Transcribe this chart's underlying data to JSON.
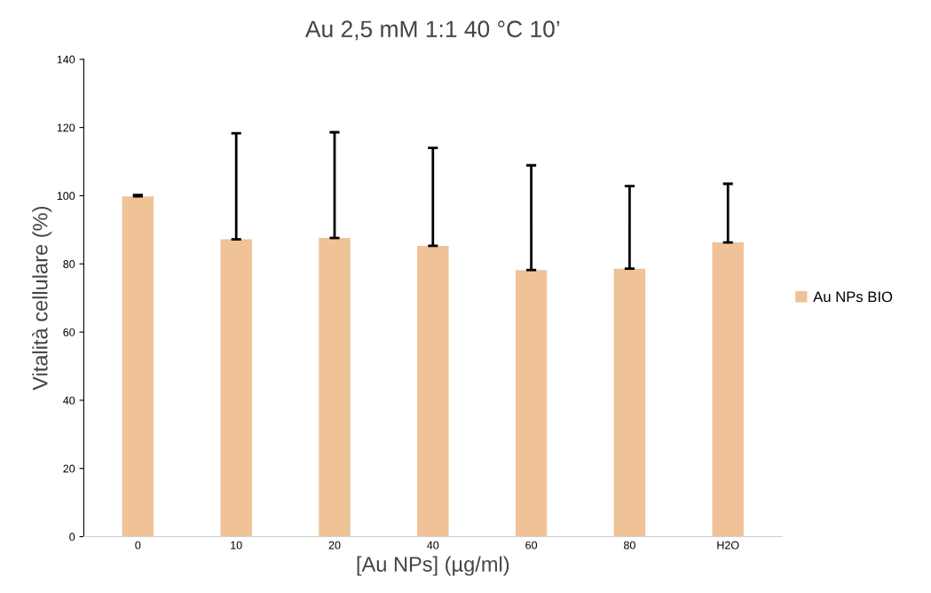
{
  "chart_data": {
    "type": "bar",
    "title": "Au 2,5 mM 1:1 40 °C 10’",
    "xlabel": "[Au NPs] (µg/ml)",
    "ylabel": "Vitalità cellulare (%)",
    "categories": [
      "0",
      "10",
      "20",
      "40",
      "60",
      "80",
      "H2O"
    ],
    "series": [
      {
        "name": "Au NPs BIO",
        "color": "#f0c297",
        "values": [
          99.8,
          87.2,
          87.6,
          85.3,
          78.2,
          78.6,
          86.3
        ],
        "errors": [
          [
            99.8,
            100.2
          ],
          [
            87.2,
            118.3
          ],
          [
            87.6,
            118.6
          ],
          [
            85.3,
            114.0
          ],
          [
            78.2,
            108.9
          ],
          [
            78.6,
            102.8
          ],
          [
            86.3,
            103.5
          ]
        ]
      }
    ],
    "ylim": [
      0,
      140
    ],
    "yticks": [
      0,
      20,
      40,
      60,
      80,
      100,
      120,
      140
    ],
    "grid": false,
    "legend": "right"
  }
}
